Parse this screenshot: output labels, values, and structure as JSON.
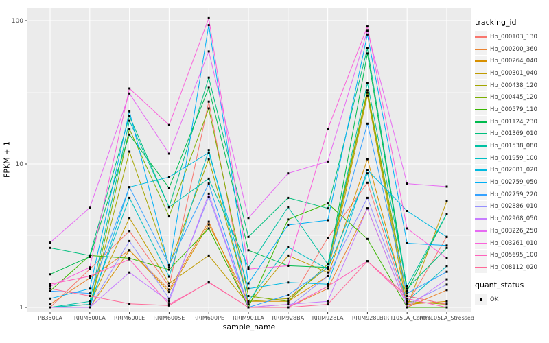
{
  "chart_data": {
    "type": "line",
    "title": "",
    "xlabel": "sample_name",
    "ylabel": "FPKM + 1",
    "y_scale": "log10",
    "y_axis_tick_labels": [
      "1",
      "10",
      "100"
    ],
    "y_axis_ticks": [
      1,
      10,
      100
    ],
    "y_minor_ticks": [
      3.162,
      31.62
    ],
    "ylim": [
      1,
      110
    ],
    "grid": "major-white-on-gray-panel-with-minor",
    "legend_position": "right",
    "point_shape": "filled-black-square",
    "categories": [
      "PB350LA",
      "RRIM600LA",
      "RRIM600LE",
      "RRIM600SE",
      "RRIM600PE",
      "RRIM901LA",
      "RRIM928BA",
      "RRIM928LA",
      "RRIM928LE",
      "RRII105LA_Control",
      "RRII105LA_Stressed"
    ],
    "series": [
      {
        "name": "Hb_000103_130",
        "color": "#F8766D",
        "values": [
          1.0,
          1.85,
          3.4,
          1.4,
          27.2,
          1.0,
          1.05,
          3.05,
          7.4,
          1.05,
          3.1
        ]
      },
      {
        "name": "Hb_000200_360",
        "color": "#EA8331",
        "values": [
          1.05,
          1.6,
          2.5,
          1.33,
          3.96,
          1.0,
          1.0,
          1.35,
          4.9,
          1.0,
          1.32
        ]
      },
      {
        "name": "Hb_000264_040",
        "color": "#D89000",
        "values": [
          1.0,
          1.0,
          2.5,
          1.28,
          3.79,
          1.1,
          1.1,
          1.65,
          10.8,
          1.05,
          1.1
        ]
      },
      {
        "name": "Hb_000301_040",
        "color": "#C09B00",
        "values": [
          1.0,
          1.05,
          4.2,
          1.47,
          2.3,
          1.05,
          2.3,
          1.75,
          30.0,
          1.0,
          5.5
        ]
      },
      {
        "name": "Hb_000438_120",
        "color": "#A3A500",
        "values": [
          1.0,
          1.0,
          12.2,
          1.97,
          10.8,
          1.1,
          1.15,
          1.9,
          31.4,
          1.1,
          1.05
        ]
      },
      {
        "name": "Hb_000445_120",
        "color": "#7CAE00",
        "values": [
          1.0,
          1.0,
          17.5,
          4.3,
          24.4,
          1.2,
          1.1,
          2.0,
          32.6,
          1.2,
          1.05
        ]
      },
      {
        "name": "Hb_000579_110",
        "color": "#39B600",
        "values": [
          1.3,
          2.3,
          2.2,
          1.83,
          3.55,
          1.0,
          4.1,
          5.3,
          3.0,
          1.0,
          1.0
        ]
      },
      {
        "name": "Hb_001124_230",
        "color": "#00BB4E",
        "values": [
          1.7,
          2.25,
          16.0,
          6.8,
          34.0,
          2.5,
          1.95,
          1.9,
          59.0,
          1.3,
          4.5
        ]
      },
      {
        "name": "Hb_001369_010",
        "color": "#00BF7D",
        "values": [
          2.6,
          2.3,
          21.6,
          5.0,
          40.0,
          3.1,
          5.8,
          4.9,
          64.0,
          1.35,
          2.6
        ]
      },
      {
        "name": "Hb_001538_080",
        "color": "#00C1A3",
        "values": [
          1.0,
          1.1,
          20.0,
          5.0,
          7.9,
          1.9,
          5.0,
          2.0,
          36.7,
          1.4,
          4.5
        ]
      },
      {
        "name": "Hb_001959_100",
        "color": "#00BFC4",
        "values": [
          1.0,
          1.05,
          5.8,
          1.64,
          12.5,
          1.1,
          2.63,
          1.85,
          8.6,
          1.1,
          1.94
        ]
      },
      {
        "name": "Hb_002081_020",
        "color": "#00BAE0",
        "values": [
          1.0,
          1.0,
          6.9,
          8.1,
          12.0,
          1.35,
          1.49,
          1.45,
          9.1,
          4.7,
          3.1
        ]
      },
      {
        "name": "Hb_002759_050",
        "color": "#00B0F6",
        "values": [
          1.15,
          1.35,
          23.3,
          1.9,
          93.0,
          1.47,
          3.75,
          4.05,
          80.0,
          2.8,
          2.7
        ]
      },
      {
        "name": "Hb_002759_220",
        "color": "#35A2FF",
        "values": [
          1.3,
          1.25,
          6.9,
          1.97,
          7.3,
          1.0,
          1.22,
          1.9,
          19.1,
          1.25,
          1.77
        ]
      },
      {
        "name": "Hb_002886_010",
        "color": "#9590FF",
        "values": [
          1.0,
          1.0,
          2.9,
          1.15,
          5.9,
          1.0,
          1.0,
          1.65,
          5.8,
          1.05,
          1.44
        ]
      },
      {
        "name": "Hb_002968_050",
        "color": "#C77CFF",
        "values": [
          1.0,
          1.0,
          1.75,
          1.1,
          6.2,
          1.0,
          1.05,
          1.1,
          4.9,
          1.0,
          1.57
        ]
      },
      {
        "name": "Hb_003226_250",
        "color": "#E76BF3",
        "values": [
          2.83,
          4.95,
          31.0,
          11.8,
          61.0,
          4.2,
          8.6,
          10.4,
          85.0,
          7.3,
          6.95
        ]
      },
      {
        "name": "Hb_003261_010",
        "color": "#FA62DB",
        "values": [
          1.4,
          1.9,
          33.6,
          18.7,
          104.0,
          1.85,
          1.95,
          17.5,
          91.0,
          3.55,
          2.2
        ]
      },
      {
        "name": "Hb_005695_100",
        "color": "#FF62BC",
        "values": [
          1.45,
          1.65,
          2.16,
          1.05,
          1.49,
          1.0,
          1.0,
          1.4,
          2.1,
          1.15,
          1.0
        ]
      },
      {
        "name": "Hb_008112_020",
        "color": "#FF6A98",
        "values": [
          1.35,
          1.2,
          1.06,
          1.03,
          1.5,
          1.0,
          1.0,
          1.05,
          2.1,
          1.2,
          1.05
        ]
      }
    ],
    "legend": {
      "color_legend_title": "tracking_id",
      "shape_legend_title": "quant_status",
      "shape_legend_entries": [
        {
          "label": "OK"
        }
      ]
    },
    "colors": {
      "panel_bg": "#EBEBEB",
      "grid_major": "#FFFFFF",
      "grid_minor": "#F5F5F5",
      "point": "#000000",
      "axis_text": "#4D4D4D",
      "tick_mark": "#333333",
      "legend_key_bg": "#F2F2F2"
    }
  }
}
